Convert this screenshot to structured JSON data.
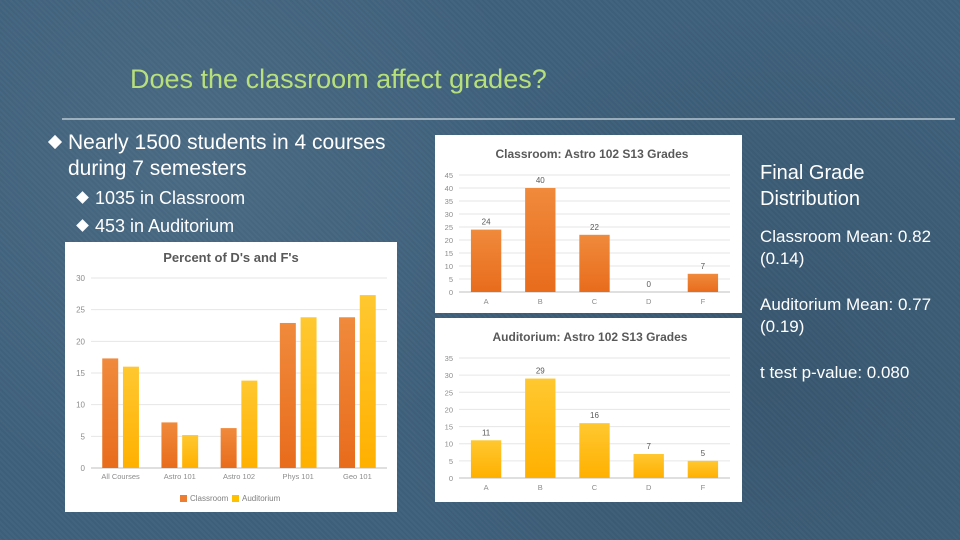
{
  "slide": {
    "title": "Does the classroom affect grades?",
    "bullets": {
      "main": "Nearly 1500 students in 4 courses during 7 semesters",
      "sub": [
        "1035 in Classroom",
        "453 in Auditorium"
      ]
    },
    "right_panel": {
      "heading": "Final Grade Distribution",
      "items": [
        "Classroom Mean: 0.82 (0.14)",
        "Auditorium Mean: 0.77 (0.19)",
        "t test p-value: 0.080"
      ]
    }
  },
  "colors": {
    "classroom": "#ed7d31",
    "auditorium": "#ffc000",
    "title": "#b8e07a",
    "background": "#3f617c"
  },
  "chart_data": [
    {
      "type": "bar",
      "title": "Percent of D's and F's",
      "categories": [
        "All Courses",
        "Astro 101",
        "Astro 102",
        "Phys 101",
        "Geo 101"
      ],
      "series": [
        {
          "name": "Classroom",
          "values": [
            17.3,
            7.2,
            6.3,
            22.9,
            23.8
          ]
        },
        {
          "name": "Auditorium",
          "values": [
            16.0,
            5.2,
            13.8,
            23.8,
            27.3
          ]
        }
      ],
      "ylim": [
        0,
        30
      ],
      "yticks": [
        0,
        5,
        10,
        15,
        20,
        25,
        30
      ],
      "legend": "bottom"
    },
    {
      "type": "bar",
      "title": "Classroom: Astro 102 S13 Grades",
      "categories": [
        "A",
        "B",
        "C",
        "D",
        "F"
      ],
      "values": [
        24,
        40,
        22,
        0,
        7
      ],
      "labels": [
        "24",
        "40",
        "22",
        "0",
        "7"
      ],
      "ylim": [
        0,
        45
      ],
      "yticks": [
        0,
        5,
        10,
        15,
        20,
        25,
        30,
        35,
        40,
        45
      ]
    },
    {
      "type": "bar",
      "title": "Auditorium: Astro 102 S13 Grades",
      "categories": [
        "A",
        "B",
        "C",
        "D",
        "F"
      ],
      "values": [
        11,
        29,
        16,
        7,
        5
      ],
      "labels": [
        "11",
        "29",
        "16",
        "7",
        "5"
      ],
      "ylim": [
        0,
        35
      ],
      "yticks": [
        0,
        5,
        10,
        15,
        20,
        25,
        30,
        35
      ]
    }
  ]
}
